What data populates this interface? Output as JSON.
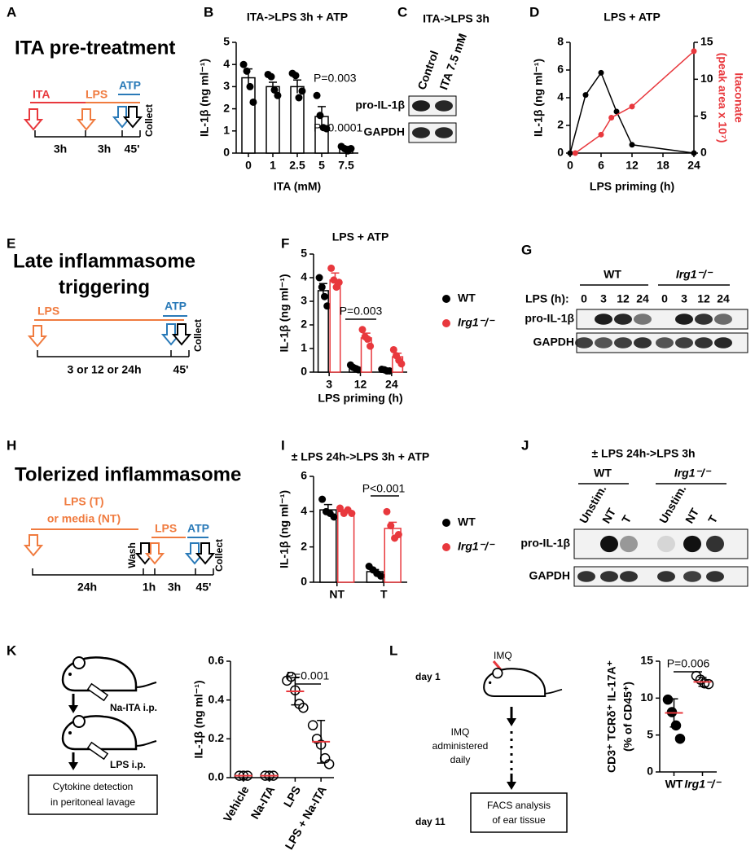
{
  "letters": [
    "A",
    "B",
    "C",
    "D",
    "E",
    "F",
    "G",
    "H",
    "I",
    "J",
    "K",
    "L"
  ],
  "chart_data": [
    {
      "type": "bar",
      "title": "ITA->LPS 3h + ATP",
      "ylabel": "IL-1β (ng ml⁻¹)",
      "xlabel": "ITA (mM)",
      "categories": [
        "0",
        "1",
        "2.5",
        "5",
        "7.5"
      ],
      "values": [
        3.4,
        3.0,
        3.0,
        1.65,
        0.2
      ],
      "errors": [
        0.4,
        0.2,
        0.3,
        0.45,
        0.1
      ],
      "points": [
        [
          4.0,
          3.7,
          3.0,
          2.3
        ],
        [
          3.55,
          3.45,
          2.85,
          2.6
        ],
        [
          3.6,
          3.5,
          2.5,
          2.8
        ],
        [
          2.6,
          1.7,
          1.15,
          1.1
        ],
        [
          0.3,
          0.2,
          0.1,
          0.2
        ]
      ],
      "color": "#000000",
      "ylim": [
        0,
        5
      ],
      "yticks": [
        0,
        1,
        2,
        3,
        4,
        5
      ],
      "annotations": [
        "P=0.003",
        "P<0.0001"
      ]
    },
    {
      "type": "line",
      "title": "LPS + ATP",
      "xlabel": "LPS priming (h)",
      "ylabel": "IL-1β (ng ml⁻¹)",
      "y2label": [
        "Itaconate",
        "(peak area x 10⁷)"
      ],
      "series": [
        {
          "color": "#000000",
          "x": [
            0,
            3,
            6,
            9,
            12,
            24
          ],
          "values": [
            0,
            4.2,
            5.8,
            3.0,
            0.6,
            0
          ]
        },
        {
          "color": "#e8383d",
          "axis": "y2",
          "x": [
            1,
            6,
            8,
            12,
            24
          ],
          "values": [
            0,
            2.5,
            4.8,
            6.3,
            13.8
          ]
        }
      ],
      "xlim": [
        0,
        24
      ],
      "xticks": [
        0,
        6,
        12,
        18,
        24
      ],
      "ylim": [
        0,
        8
      ],
      "yticks": [
        0,
        2,
        4,
        6,
        8
      ],
      "y2lim": [
        0,
        15
      ],
      "y2ticks": [
        0,
        5,
        10,
        15
      ]
    },
    {
      "type": "bar",
      "title": "LPS + ATP",
      "ylabel": "IL-1β (ng ml⁻¹)",
      "xlabel": "LPS priming (h)",
      "categories": [
        "3",
        "12",
        "24"
      ],
      "series": [
        {
          "name": "WT",
          "color": "#000000",
          "values": [
            3.45,
            0.2,
            0.1
          ],
          "errors": [
            0.3,
            0.05,
            0.02
          ],
          "points": [
            [
              4.0,
              3.6,
              3.2,
              2.8
            ],
            [
              0.3,
              0.2,
              0.15,
              0.1
            ],
            [
              0.12,
              0.1,
              0.05,
              0.05
            ]
          ]
        },
        {
          "name": "Irg1⁻/⁻",
          "color": "#e8383d",
          "values": [
            3.9,
            1.45,
            0.65
          ],
          "errors": [
            0.3,
            0.2,
            0.15
          ],
          "points": [
            [
              4.4,
              3.9,
              3.6,
              3.8
            ],
            [
              1.8,
              1.5,
              1.4,
              1.1
            ],
            [
              0.95,
              0.7,
              0.5,
              0.35
            ]
          ]
        }
      ],
      "ylim": [
        0,
        5
      ],
      "yticks": [
        0,
        1,
        2,
        3,
        4,
        5
      ],
      "annotations": [
        "P=0.003"
      ]
    },
    {
      "type": "bar",
      "title": "± LPS 24h->LPS 3h + ATP",
      "ylabel": "IL-1β (ng ml⁻¹)",
      "categories": [
        "NT",
        "T"
      ],
      "series": [
        {
          "name": "WT",
          "color": "#000000",
          "values": [
            4.1,
            0.6
          ],
          "errors": [
            0.3,
            0.12
          ],
          "points": [
            [
              4.7,
              4.0,
              3.9,
              3.7
            ],
            [
              0.9,
              0.7,
              0.5,
              0.35
            ]
          ]
        },
        {
          "name": "Irg1⁻/⁻",
          "color": "#e8383d",
          "values": [
            4.0,
            3.05
          ],
          "errors": [
            0.1,
            0.35
          ],
          "points": [
            [
              4.2,
              3.9,
              4.1,
              3.9
            ],
            [
              4.0,
              3.2,
              2.5,
              2.7
            ]
          ]
        }
      ],
      "ylim": [
        0,
        6
      ],
      "yticks": [
        0,
        2,
        4,
        6
      ],
      "annotations": [
        "P<0.001"
      ]
    },
    {
      "type": "strip",
      "ylabel": "IL-1β (ng ml⁻¹)",
      "categories": [
        "Vehicle",
        "Na-ITA",
        "LPS",
        "LPS + Na-ITA"
      ],
      "means": [
        0.01,
        0.01,
        0.445,
        0.185
      ],
      "sds": [
        0,
        0,
        0.07,
        0.11
      ],
      "points": [
        [
          0.01,
          0.01,
          0.01
        ],
        [
          0.01,
          0.01,
          0.01
        ],
        [
          0.5,
          0.52,
          0.45,
          0.38,
          0.36
        ],
        [
          0.27,
          0.2,
          0.17,
          0.1,
          0.07
        ]
      ],
      "point_fill": [
        "none",
        "none",
        "none",
        "none"
      ],
      "color": "#000000",
      "mean_color": "#e8383d",
      "ylim": [
        0,
        0.6
      ],
      "yticks": [
        {
          "value": 0,
          "label": "0.0"
        },
        0.2,
        0.4,
        0.6
      ],
      "annotations": [
        "P=0.001"
      ]
    },
    {
      "type": "strip",
      "ylabel": [
        "CD3⁺ TCRδ⁺ IL-17A⁺",
        "(% of CD45⁺)"
      ],
      "categories": [
        "WT",
        "Irg1⁻/⁻"
      ],
      "means": [
        8,
        12.2
      ],
      "sds": [
        1.9,
        0.6
      ],
      "points": [
        [
          9.8,
          8.1,
          6.3,
          4.5
        ],
        [
          13,
          12.5,
          12,
          11.9
        ]
      ],
      "point_fill": [
        "#000000",
        "none"
      ],
      "color": "#000000",
      "mean_color": "#e8383d",
      "ylim": [
        0,
        15
      ],
      "yticks": [
        0,
        5,
        10,
        15
      ],
      "annotations": [
        "P=0.006"
      ]
    }
  ],
  "diagram_a": {
    "title": "ITA pre-treatment",
    "steps": [
      "ITA",
      "LPS",
      "ATP"
    ],
    "intervals": [
      "3h",
      "3h",
      "45'"
    ],
    "end": "Collect"
  },
  "blot_c": {
    "title": "ITA->LPS 3h",
    "lanes": [
      "Control",
      "ITA 7.5 mM"
    ],
    "rows": [
      "pro-IL-1β",
      "GAPDH"
    ]
  },
  "diagram_e": {
    "title_lines": [
      "Late inflammasome",
      "triggering"
    ],
    "steps": [
      "LPS",
      "ATP"
    ],
    "intervals": [
      "3 or 12 or 24h",
      "45'"
    ],
    "end": "Collect"
  },
  "blot_g": {
    "groups": [
      "WT",
      "Irg1⁻/⁻"
    ],
    "lane_label": "LPS (h):",
    "lanes": [
      "0",
      "3",
      "12",
      "24",
      "0",
      "3",
      "12",
      "24"
    ],
    "rows": [
      "pro-IL-1β",
      "GAPDH"
    ]
  },
  "diagram_h": {
    "title": "Tolerized inflammasome",
    "first_lines": [
      "LPS (T)",
      "or media (NT)"
    ],
    "wash": "Wash",
    "steps": [
      "LPS",
      "ATP"
    ],
    "intervals": [
      "24h",
      "1h",
      "3h",
      "45'"
    ],
    "end": "Collect"
  },
  "blot_j": {
    "title": "± LPS 24h->LPS 3h",
    "groups": [
      "WT",
      "Irg1⁻/⁻"
    ],
    "lanes": [
      "Unstim.",
      "NT",
      "T",
      "Unstim.",
      "NT",
      "T"
    ],
    "rows": [
      "pro-IL-1β",
      "GAPDH"
    ]
  },
  "diagram_k": {
    "injections": [
      "Na-ITA i.p.",
      "LPS i.p."
    ],
    "result_lines": [
      "Cytokine detection",
      "in peritoneal lavage"
    ]
  },
  "diagram_l": {
    "days": [
      "day 1",
      "day 11"
    ],
    "drug": "IMQ",
    "note_lines": [
      "IMQ",
      "administered",
      "daily"
    ],
    "result_lines": [
      "FACS analysis",
      "of ear tissue"
    ]
  }
}
